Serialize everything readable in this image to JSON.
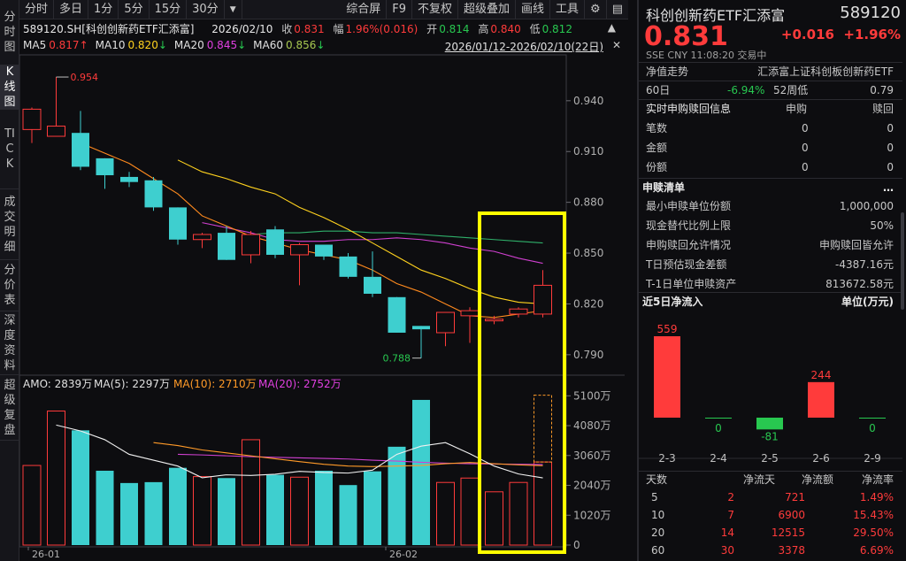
{
  "vtabs": [
    {
      "label": "分时图",
      "active": false
    },
    {
      "label": "K线图",
      "active": true
    },
    {
      "label": "TICK",
      "active": false
    },
    {
      "label": "成交明细",
      "active": false
    },
    {
      "label": "分价表",
      "active": false
    },
    {
      "label": "深度资料",
      "active": false
    },
    {
      "label": "超级复盘",
      "active": false
    }
  ],
  "toolbar": {
    "left": [
      "分时",
      "多日",
      "1分",
      "5分",
      "15分",
      "30分"
    ],
    "dropdown_icon": "triangle-down-icon",
    "right": [
      "综合屏",
      "F9",
      "不复权",
      "超级叠加",
      "画线",
      "工具"
    ],
    "gear_icon": "gear-icon",
    "panel_icon": "panel-layout-icon"
  },
  "info": {
    "symbol": "589120.SH[科创创新药ETF汇添富]",
    "date": "2026/02/10",
    "close_label": "收",
    "close": "0.831",
    "amp_label": "幅",
    "amp": "1.96%(0.016)",
    "open_label": "开",
    "open": "0.814",
    "high_label": "高",
    "high": "0.840",
    "low_label": "低",
    "low": "0.812",
    "collapse_icon": "collapse-icon",
    "range": "2026/01/12-2026/02/10(22日)",
    "close_icon": "close-icon"
  },
  "ma_legend": [
    {
      "label": "MA5",
      "value": "0.817",
      "arrow": "↑",
      "color": "#ff3b3b"
    },
    {
      "label": "MA10",
      "value": "0.820",
      "arrow": "↓",
      "color": "#ffd21e"
    },
    {
      "label": "MA20",
      "value": "0.845",
      "arrow": "↓",
      "color": "#e040e0"
    },
    {
      "label": "MA60",
      "value": "0.856",
      "arrow": "↓",
      "color": "#a8c850"
    }
  ],
  "price_axis": [
    "0.940",
    "0.910",
    "0.880",
    "0.850",
    "0.820",
    "0.790"
  ],
  "annotations": {
    "high": "0.954",
    "low": "0.788"
  },
  "amo_legend": {
    "amo": "AMO: 2839万",
    "ma5": "MA(5): 2297万",
    "ma10": "MA(10): 2710万",
    "ma20": "MA(20): 2752万"
  },
  "vol_axis": [
    "5100万",
    "4080万",
    "3060万",
    "2040万",
    "1020万",
    "0"
  ],
  "date_axis": [
    "26-01",
    "26-02"
  ],
  "chart_data": {
    "type": "candlestick",
    "ylim": [
      0.78,
      0.965
    ],
    "candles": [
      {
        "o": 0.923,
        "c": 0.935,
        "h": 0.936,
        "l": 0.915
      },
      {
        "o": 0.919,
        "c": 0.925,
        "h": 0.954,
        "l": 0.919
      },
      {
        "o": 0.921,
        "c": 0.901,
        "h": 0.934,
        "l": 0.899
      },
      {
        "o": 0.906,
        "c": 0.896,
        "h": 0.906,
        "l": 0.888
      },
      {
        "o": 0.895,
        "c": 0.892,
        "h": 0.898,
        "l": 0.889
      },
      {
        "o": 0.893,
        "c": 0.877,
        "h": 0.895,
        "l": 0.875
      },
      {
        "o": 0.877,
        "c": 0.858,
        "h": 0.877,
        "l": 0.855
      },
      {
        "o": 0.858,
        "c": 0.861,
        "h": 0.862,
        "l": 0.853
      },
      {
        "o": 0.862,
        "c": 0.846,
        "h": 0.866,
        "l": 0.846
      },
      {
        "o": 0.849,
        "c": 0.861,
        "h": 0.863,
        "l": 0.844
      },
      {
        "o": 0.864,
        "c": 0.849,
        "h": 0.866,
        "l": 0.847
      },
      {
        "o": 0.849,
        "c": 0.855,
        "h": 0.856,
        "l": 0.831
      },
      {
        "o": 0.855,
        "c": 0.848,
        "h": 0.855,
        "l": 0.846
      },
      {
        "o": 0.848,
        "c": 0.836,
        "h": 0.85,
        "l": 0.835
      },
      {
        "o": 0.836,
        "c": 0.826,
        "h": 0.851,
        "l": 0.824
      },
      {
        "o": 0.824,
        "c": 0.803,
        "h": 0.824,
        "l": 0.803
      },
      {
        "o": 0.807,
        "c": 0.805,
        "h": 0.807,
        "l": 0.788
      },
      {
        "o": 0.803,
        "c": 0.815,
        "h": 0.815,
        "l": 0.795
      },
      {
        "o": 0.813,
        "c": 0.816,
        "h": 0.818,
        "l": 0.797
      },
      {
        "o": 0.81,
        "c": 0.811,
        "h": 0.813,
        "l": 0.808
      },
      {
        "o": 0.814,
        "c": 0.817,
        "h": 0.818,
        "l": 0.812
      },
      {
        "o": 0.814,
        "c": 0.831,
        "h": 0.84,
        "l": 0.812
      }
    ],
    "ma5": [
      0.915,
      0.909,
      0.903,
      0.894,
      0.885,
      0.872,
      0.866,
      0.86,
      0.856,
      0.852,
      0.849,
      0.846,
      0.84,
      0.832,
      0.827,
      0.82,
      0.813,
      0.812,
      0.814,
      0.816
    ],
    "ma10": [
      0.905,
      0.898,
      0.894,
      0.889,
      0.885,
      0.877,
      0.871,
      0.864,
      0.856,
      0.848,
      0.84,
      0.835,
      0.829,
      0.824,
      0.821,
      0.82
    ],
    "ma20": [
      0.868,
      0.865,
      0.862,
      0.858,
      0.857,
      0.857,
      0.858,
      0.858,
      0.859,
      0.858,
      0.856,
      0.853,
      0.851,
      0.847,
      0.844
    ],
    "ma60": [
      0.861,
      0.862,
      0.862,
      0.863,
      0.863,
      0.862,
      0.862,
      0.861,
      0.86,
      0.859,
      0.858,
      0.857,
      0.856
    ],
    "volume_ylim": [
      0,
      5200
    ],
    "volume": [
      2720,
      4580,
      3920,
      2540,
      2120,
      2150,
      2640,
      2340,
      2290,
      3600,
      2400,
      2320,
      2540,
      2050,
      2520,
      3360,
      4960,
      2140,
      2290,
      1820,
      2140,
      2839
    ],
    "vol_ma5": [
      4100,
      3900,
      3600,
      3100,
      2900,
      2700,
      2300,
      2400,
      2380,
      2420,
      2520,
      2480,
      2460,
      2560,
      3100,
      3380,
      3500,
      3120,
      2700,
      2430,
      2297
    ],
    "vol_ma10": [
      3500,
      3400,
      3250,
      3150,
      3050,
      2950,
      2850,
      2760,
      2700,
      2680,
      2700,
      2720,
      2780,
      2820,
      2780,
      2740,
      2710
    ],
    "vol_ma20": [
      3100,
      3080,
      3050,
      3020,
      3000,
      2980,
      2960,
      2940,
      2900,
      2870,
      2830,
      2800,
      2780,
      2770,
      2760,
      2752
    ]
  },
  "right": {
    "title": "科创创新药ETF汇添富",
    "code": "589120",
    "price": "0.831",
    "change": "+0.016",
    "change_pct": "+1.96%",
    "meta": "SSE  CNY  11:08:20  交易中",
    "nav_label": "净值走势",
    "nav_name": "汇添富上证科创板创新药ETF",
    "row60_label": "60日",
    "row60_pct": "-6.94%",
    "row52_label": "52周低",
    "row52_val": "0.79",
    "realtime_title": "实时申购赎回信息",
    "col_sub": "申购",
    "col_red": "赎回",
    "rt_rows": [
      {
        "label": "笔数",
        "sub": "0",
        "red": "0"
      },
      {
        "label": "金额",
        "sub": "0",
        "red": "0"
      },
      {
        "label": "份额",
        "sub": "0",
        "red": "0"
      }
    ],
    "list_title": "申赎清单",
    "more_icon": "more-icon",
    "list_rows": [
      {
        "label": "最小申赎单位份额",
        "value": "1,000,000"
      },
      {
        "label": "现金替代比例上限",
        "value": "50%"
      },
      {
        "label": "申购赎回允许情况",
        "value": "申购赎回皆允许"
      },
      {
        "label": "T日预估现金差额",
        "value": "-4387.16元"
      },
      {
        "label": "T-1日单位申赎资产",
        "value": "813672.58元"
      }
    ],
    "flow_title": "近5日净流入",
    "flow_unit": "单位(万元)",
    "flow_chart": {
      "type": "bar",
      "categories": [
        "2-3",
        "2-4",
        "2-5",
        "2-6",
        "2-9"
      ],
      "values": [
        559,
        0,
        -81,
        244,
        0
      ],
      "labels": [
        "559",
        "0",
        "-81",
        "244",
        "0"
      ]
    },
    "table_head": [
      "天数",
      "净流天",
      "净流额",
      "净流率"
    ],
    "table_rows": [
      {
        "d": "5",
        "days": "2",
        "amt": "721",
        "rate": "1.49%"
      },
      {
        "d": "10",
        "days": "7",
        "amt": "6900",
        "rate": "15.43%"
      },
      {
        "d": "20",
        "days": "14",
        "amt": "12515",
        "rate": "29.50%"
      },
      {
        "d": "60",
        "days": "30",
        "amt": "3378",
        "rate": "6.69%"
      }
    ]
  }
}
